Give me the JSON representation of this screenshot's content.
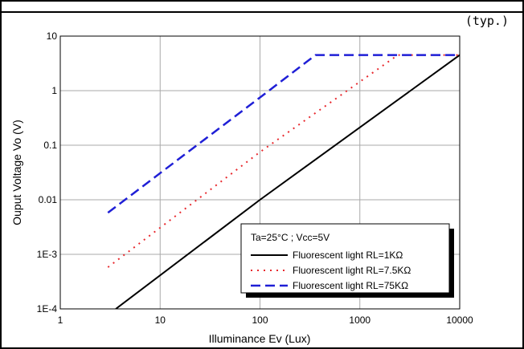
{
  "chart_data": {
    "type": "line",
    "note": "(typ.)",
    "title": "",
    "xlabel": "Illuminance Ev (Lux)",
    "ylabel": "Ouput Voltage Vo (V)",
    "x_scale": "log",
    "y_scale": "log",
    "xlim": [
      1,
      10000
    ],
    "ylim": [
      0.0001,
      10
    ],
    "x_ticks": [
      1,
      10,
      100,
      1000,
      10000
    ],
    "x_tick_labels": [
      "1",
      "10",
      "100",
      "1000",
      "10000"
    ],
    "y_ticks": [
      0.0001,
      0.001,
      0.01,
      0.1,
      1,
      10
    ],
    "y_tick_labels": [
      "1E-4",
      "1E-3",
      "0.01",
      "0.1",
      "1",
      "10"
    ],
    "grid": true,
    "legend_placement": "bottom-right",
    "condition": "Ta=25°C ; Vcc=5V",
    "series": [
      {
        "name": "Fluorescent light  RL=1KΩ",
        "color": "#000000",
        "style": "solid",
        "points": [
          [
            3.6,
            0.0001
          ],
          [
            100,
            0.01
          ],
          [
            10000,
            4.5
          ]
        ]
      },
      {
        "name": "Fluorescent light  RL=7.5KΩ",
        "color": "#e8282d",
        "style": "dotted",
        "points": [
          [
            3,
            0.00058
          ],
          [
            100,
            0.075
          ],
          [
            2400,
            4.5
          ],
          [
            10000,
            4.5
          ]
        ]
      },
      {
        "name": "Fluorescent light  RL=75KΩ",
        "color": "#1f1fd6",
        "style": "dashed",
        "points": [
          [
            3,
            0.0058
          ],
          [
            100,
            0.75
          ],
          [
            360,
            4.5
          ],
          [
            10000,
            4.5
          ]
        ]
      }
    ]
  }
}
